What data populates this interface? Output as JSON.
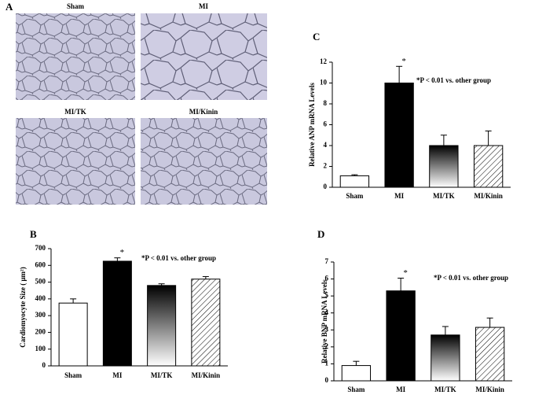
{
  "panel_a": {
    "label": "A",
    "images": [
      "Sham",
      "MI",
      "MI/TK",
      "MI/Kinin"
    ]
  },
  "chart_data": [
    {
      "type": "bar",
      "panel": "B",
      "ylabel": "Cardiomyocyte Size ( μm²)",
      "categories": [
        "Sham",
        "MI",
        "MI/TK",
        "MI/Kinin"
      ],
      "values": [
        375,
        625,
        480,
        518
      ],
      "errors": [
        25,
        20,
        10,
        15
      ],
      "fills": [
        "white",
        "black",
        "gradient",
        "hatch"
      ],
      "ylim": [
        0,
        700
      ],
      "yticks": [
        0,
        100,
        200,
        300,
        400,
        500,
        600,
        700
      ],
      "star": {
        "text": "*",
        "category": "MI"
      },
      "annotation": "*P < 0.01 vs. other group"
    },
    {
      "type": "bar",
      "panel": "C",
      "ylabel": "Relative ANP mRNA Levels",
      "categories": [
        "Sham",
        "MI",
        "MI/TK",
        "MI/Kinin"
      ],
      "values": [
        1.1,
        10.0,
        4.0,
        4.0
      ],
      "errors": [
        0.1,
        1.6,
        1.0,
        1.4
      ],
      "fills": [
        "white",
        "black",
        "gradient",
        "hatch"
      ],
      "ylim": [
        0,
        12
      ],
      "yticks": [
        0,
        2,
        4,
        6,
        8,
        10,
        12
      ],
      "star": {
        "text": "*",
        "category": "MI"
      },
      "annotation": "*P < 0.01 vs. other group"
    },
    {
      "type": "bar",
      "panel": "D",
      "ylabel": "Relative BNP mRNA Levels",
      "categories": [
        "Sham",
        "MI",
        "MI/TK",
        "MI/Kinin"
      ],
      "values": [
        0.9,
        5.3,
        2.7,
        3.15
      ],
      "errors": [
        0.25,
        0.75,
        0.5,
        0.55
      ],
      "fills": [
        "white",
        "black",
        "gradient",
        "hatch"
      ],
      "ylim": [
        0,
        7
      ],
      "yticks": [
        0,
        1,
        2,
        3,
        4,
        5,
        6,
        7
      ],
      "star": {
        "text": "*",
        "category": "MI"
      },
      "annotation": "*P < 0.01 vs. other group"
    }
  ]
}
